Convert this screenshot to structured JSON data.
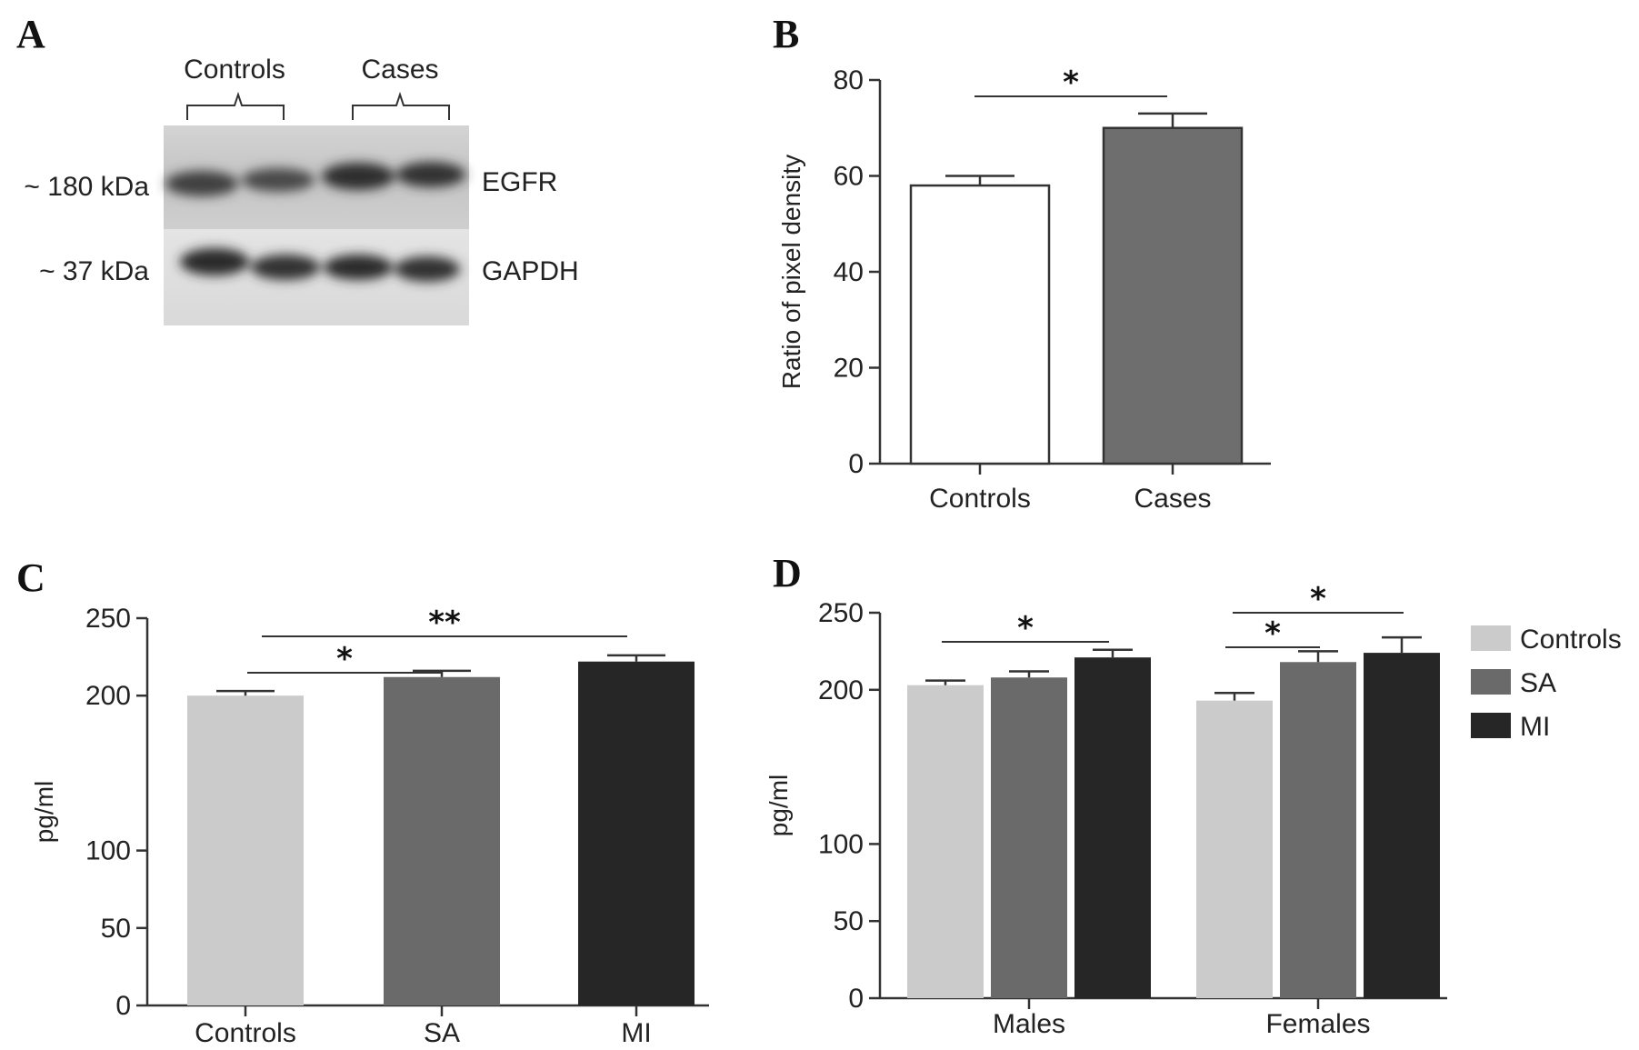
{
  "panels": {
    "a": "A",
    "b": "B",
    "c": "C",
    "d": "D"
  },
  "blot": {
    "group_left": "Controls",
    "group_right": "Cases",
    "mw_top": "~ 180 kDa",
    "mw_bottom": "~ 37 kDa",
    "band_top": "EGFR",
    "band_bottom": "GAPDH"
  },
  "colors": {
    "controls": "#cbcbcb",
    "sa": "#6a6a6a",
    "mi": "#262626",
    "cases_b": "#6e6e6e",
    "controls_b": "#ffffff",
    "axis": "#333333"
  },
  "chart_data": [
    {
      "panel": "B",
      "type": "bar",
      "categories": [
        "Controls",
        "Cases"
      ],
      "values": [
        58,
        70
      ],
      "errors": [
        2,
        3
      ],
      "ylabel": "Ratio of pixel density",
      "ylim": [
        0,
        80
      ],
      "yticks": [
        0,
        20,
        40,
        60,
        80
      ],
      "significance": [
        {
          "from": 0,
          "to": 1,
          "label": "*"
        }
      ]
    },
    {
      "panel": "C",
      "type": "bar",
      "categories": [
        "Controls",
        "SA",
        "MI"
      ],
      "values": [
        200,
        212,
        222
      ],
      "errors": [
        3,
        4,
        4
      ],
      "ylabel": "pg/ml",
      "ylim": [
        0,
        250
      ],
      "yticks": [
        0,
        50,
        100,
        200,
        250
      ],
      "significance": [
        {
          "from": 0,
          "to": 1,
          "label": "*"
        },
        {
          "from": 0,
          "to": 2,
          "label": "**"
        }
      ]
    },
    {
      "panel": "D",
      "type": "bar",
      "categories": [
        "Males",
        "Females"
      ],
      "series": [
        {
          "name": "Controls",
          "values": [
            203,
            193
          ],
          "errors": [
            3,
            5
          ]
        },
        {
          "name": "SA",
          "values": [
            208,
            218
          ],
          "errors": [
            4,
            7
          ]
        },
        {
          "name": "MI",
          "values": [
            221,
            224
          ],
          "errors": [
            5,
            10
          ]
        }
      ],
      "ylabel": "pg/ml",
      "ylim": [
        0,
        250
      ],
      "yticks": [
        0,
        50,
        100,
        200,
        250
      ],
      "legend": "right",
      "significance": [
        {
          "group": 0,
          "from": 0,
          "to": 2,
          "label": "*"
        },
        {
          "group": 1,
          "from": 0,
          "to": 1,
          "label": "*"
        },
        {
          "group": 1,
          "from": 0,
          "to": 2,
          "label": "*"
        }
      ]
    }
  ]
}
